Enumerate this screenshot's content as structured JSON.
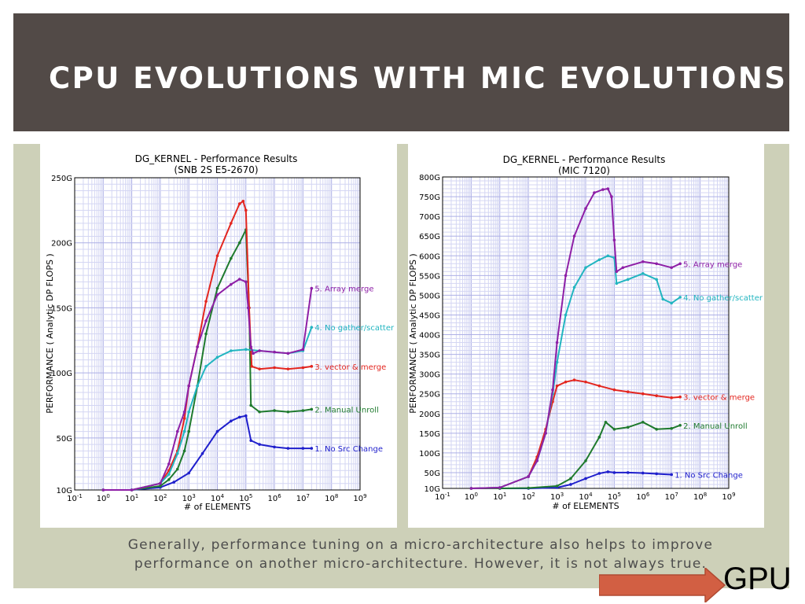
{
  "slide": {
    "title": "CPU EVOLUTIONS WITH MIC EVOLUTIONS",
    "caption_line1": "Generally, performance tuning on a micro-architecture also helps to improve",
    "caption_line2": "performance on another micro-architecture. However, it is not always true.",
    "nav_link_label": "GPU",
    "colors": {
      "title_bg": "#524a47",
      "content_bg": "#cdd0b8",
      "arrow": "#d25f43"
    }
  },
  "chart_data": [
    {
      "type": "line",
      "title": "DG_KERNEL - Performance Results",
      "subtitle": "(SNB 2S E5-2670)",
      "xlabel": "# of ELEMENTS",
      "ylabel": "PERFORMANCE ( Analytic DP FLOPS )",
      "x_scale": "log",
      "xlim": [
        0.1,
        1000000000
      ],
      "x_tick_labels": [
        "10-1",
        "100",
        "101",
        "102",
        "103",
        "104",
        "105",
        "106",
        "107",
        "108",
        "109"
      ],
      "ylim": [
        10,
        250
      ],
      "y_ticks": [
        10,
        50,
        100,
        150,
        200,
        250
      ],
      "y_tick_labels": [
        "10G",
        "50G",
        "100G",
        "150G",
        "200G",
        "250G"
      ],
      "grid": true,
      "legend": "end-of-line labels",
      "series": [
        {
          "name": "1. No Src Change",
          "color": "#1f1fcc",
          "x": [
            1,
            10,
            100,
            300,
            1000,
            3000,
            10000,
            30000,
            60000,
            100000,
            150000,
            300000,
            1000000,
            3000000,
            10000000,
            20000000
          ],
          "y": [
            10,
            10,
            12,
            16,
            23,
            38,
            55,
            63,
            66,
            67,
            48,
            45,
            43,
            42,
            42,
            42
          ]
        },
        {
          "name": "2. Manual Unroll",
          "color": "#1f7a2e",
          "x": [
            1,
            10,
            100,
            200,
            400,
            700,
            1000,
            2000,
            4000,
            10000,
            30000,
            60000,
            100000,
            130000,
            150000,
            300000,
            1000000,
            3000000,
            10000000,
            20000000
          ],
          "y": [
            10,
            10,
            13,
            18,
            26,
            40,
            55,
            90,
            130,
            165,
            188,
            200,
            210,
            150,
            75,
            70,
            71,
            70,
            71,
            72
          ]
        },
        {
          "name": "3. vector & merge",
          "color": "#e3261f",
          "x": [
            1,
            10,
            100,
            200,
            400,
            700,
            1000,
            2000,
            4000,
            10000,
            30000,
            60000,
            80000,
            100000,
            130000,
            160000,
            300000,
            1000000,
            3000000,
            10000000,
            20000000
          ],
          "y": [
            10,
            10,
            15,
            25,
            40,
            65,
            90,
            120,
            155,
            190,
            215,
            230,
            232,
            225,
            150,
            105,
            103,
            104,
            103,
            104,
            105
          ]
        },
        {
          "name": "4. No gather/scatter",
          "color": "#22b5c0",
          "x": [
            1,
            10,
            100,
            200,
            400,
            700,
            1000,
            2000,
            4000,
            10000,
            30000,
            100000,
            300000,
            1000000,
            3000000,
            10000000,
            20000000
          ],
          "y": [
            10,
            10,
            15,
            22,
            38,
            55,
            70,
            90,
            105,
            112,
            117,
            118,
            117,
            116,
            115,
            117,
            135
          ]
        },
        {
          "name": "5. Array merge",
          "color": "#8e1fa6",
          "x": [
            1,
            10,
            100,
            200,
            400,
            700,
            1000,
            2000,
            4000,
            10000,
            30000,
            60000,
            100000,
            120000,
            150000,
            180000,
            300000,
            1000000,
            3000000,
            10000000,
            20000000
          ],
          "y": [
            10,
            10,
            15,
            30,
            55,
            70,
            90,
            120,
            140,
            160,
            168,
            172,
            170,
            150,
            120,
            115,
            117,
            116,
            115,
            118,
            165
          ]
        }
      ]
    },
    {
      "type": "line",
      "title": "DG_KERNEL - Performance Results",
      "subtitle": "(MIC 7120)",
      "xlabel": "# of ELEMENTS",
      "ylabel": "PERFORMANCE ( Analytic DP FLOPS )",
      "x_scale": "log",
      "xlim": [
        0.1,
        1000000000
      ],
      "x_tick_labels": [
        "10-1",
        "100",
        "101",
        "102",
        "103",
        "104",
        "105",
        "106",
        "107",
        "108",
        "109"
      ],
      "ylim": [
        10,
        800
      ],
      "y_ticks": [
        10,
        50,
        100,
        150,
        200,
        250,
        300,
        350,
        400,
        450,
        500,
        550,
        600,
        650,
        700,
        750,
        800
      ],
      "y_tick_labels": [
        "10G",
        "50G",
        "100G",
        "150G",
        "200G",
        "250G",
        "300G",
        "350G",
        "400G",
        "450G",
        "500G",
        "550G",
        "600G",
        "650G",
        "700G",
        "750G",
        "800G"
      ],
      "grid": true,
      "legend": "end-of-line labels",
      "series": [
        {
          "name": "1. No Src Change",
          "color": "#1f1fcc",
          "x": [
            1,
            10,
            100,
            1000,
            3000,
            10000,
            30000,
            60000,
            100000,
            300000,
            1000000,
            3000000,
            10000000
          ],
          "y": [
            10,
            10,
            10,
            12,
            20,
            35,
            48,
            52,
            50,
            50,
            49,
            47,
            45
          ]
        },
        {
          "name": "2. Manual Unroll",
          "color": "#1f7a2e",
          "x": [
            1,
            10,
            100,
            1000,
            3000,
            10000,
            30000,
            50000,
            100000,
            300000,
            1000000,
            3000000,
            10000000,
            20000000
          ],
          "y": [
            10,
            10,
            11,
            16,
            35,
            80,
            140,
            178,
            160,
            165,
            178,
            160,
            162,
            170
          ]
        },
        {
          "name": "3. vector & merge",
          "color": "#e3261f",
          "x": [
            1,
            10,
            100,
            200,
            400,
            700,
            1000,
            2000,
            4000,
            10000,
            30000,
            100000,
            300000,
            1000000,
            3000000,
            10000000,
            20000000
          ],
          "y": [
            10,
            12,
            40,
            90,
            160,
            230,
            270,
            280,
            285,
            280,
            270,
            260,
            255,
            250,
            245,
            240,
            242
          ]
        },
        {
          "name": "4. No gather/scatter",
          "color": "#22b5c0",
          "x": [
            1,
            10,
            100,
            200,
            400,
            700,
            1000,
            2000,
            4000,
            10000,
            30000,
            60000,
            100000,
            120000,
            300000,
            1000000,
            3000000,
            5000000,
            10000000,
            20000000
          ],
          "y": [
            10,
            12,
            40,
            80,
            150,
            250,
            330,
            450,
            520,
            570,
            590,
            600,
            595,
            530,
            540,
            555,
            540,
            490,
            480,
            495
          ]
        },
        {
          "name": "5. Array merge",
          "color": "#8e1fa6",
          "x": [
            1,
            10,
            100,
            200,
            400,
            700,
            1000,
            2000,
            4000,
            10000,
            20000,
            40000,
            60000,
            80000,
            100000,
            120000,
            200000,
            1000000,
            3000000,
            10000000,
            20000000
          ],
          "y": [
            10,
            12,
            40,
            80,
            150,
            260,
            380,
            550,
            650,
            720,
            760,
            768,
            770,
            750,
            640,
            560,
            570,
            585,
            580,
            570,
            580
          ]
        }
      ]
    }
  ]
}
